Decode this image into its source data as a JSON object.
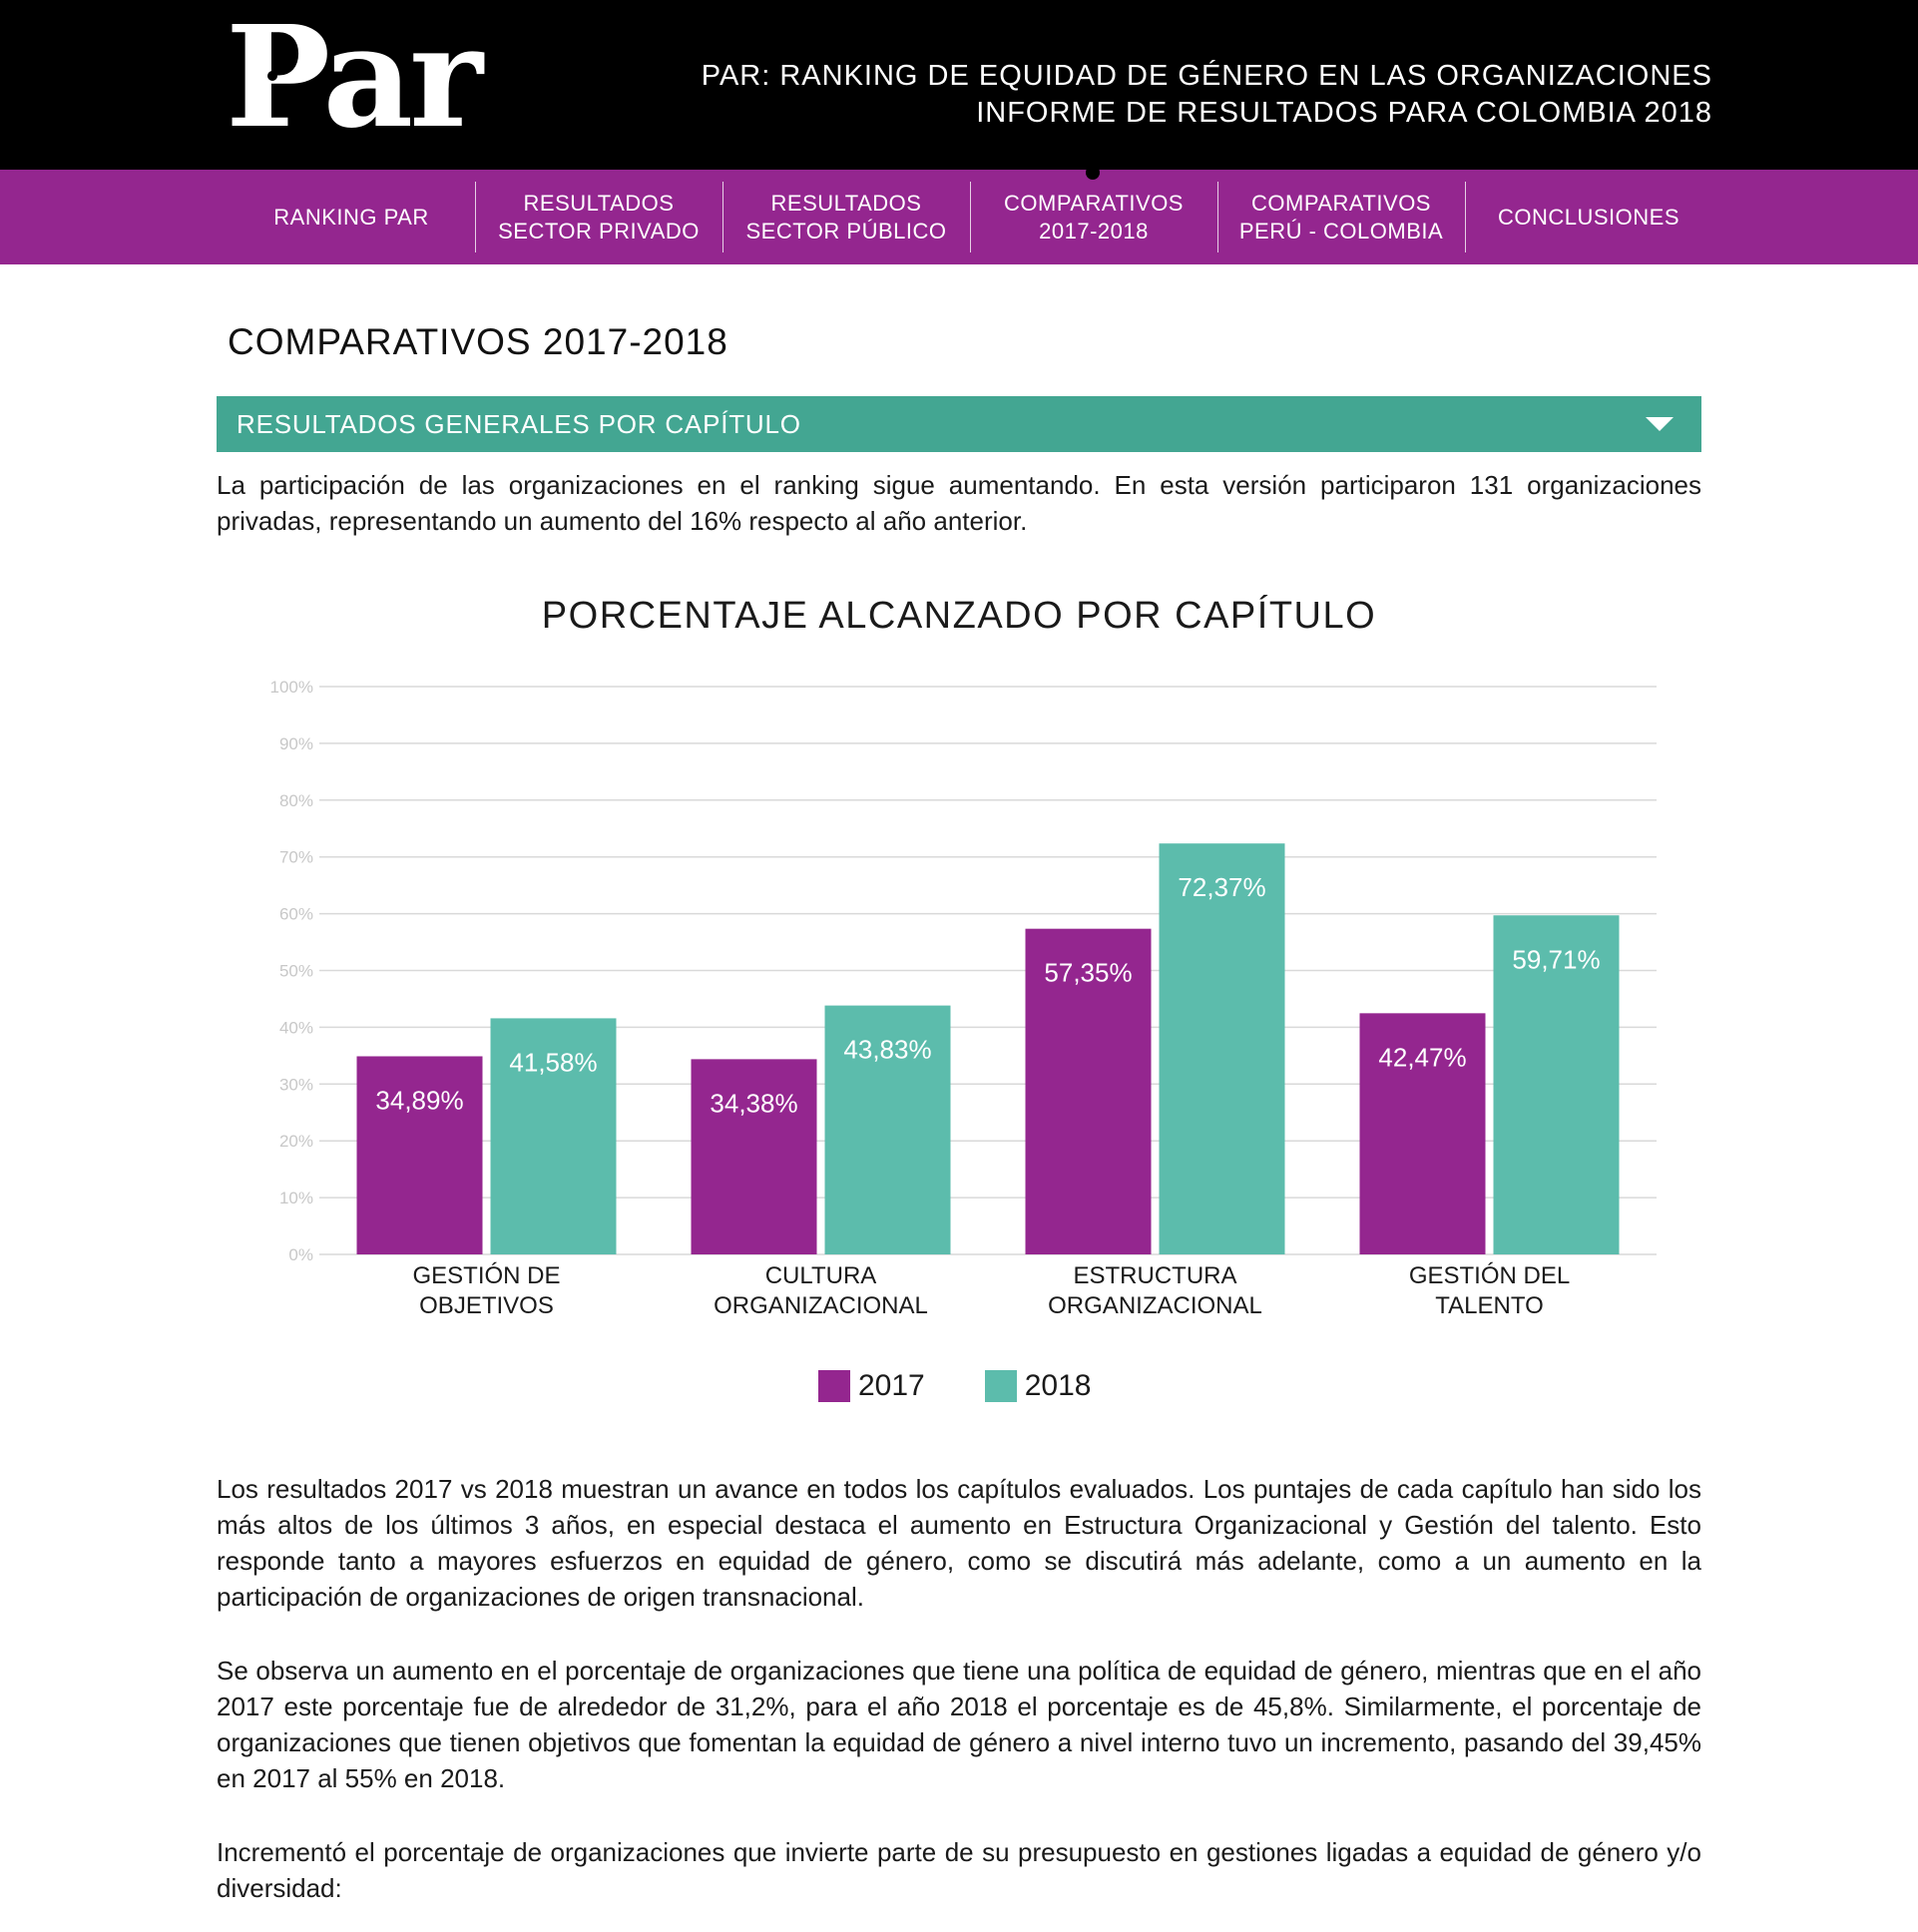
{
  "header": {
    "logo_text": "Par",
    "title_line1": "PAR: RANKING DE EQUIDAD DE GÉNERO EN LAS ORGANIZACIONES",
    "title_line2": "INFORME DE RESULTADOS PARA COLOMBIA 2018"
  },
  "nav": {
    "items": [
      {
        "label": "RANKING PAR"
      },
      {
        "label": "RESULTADOS\nSECTOR PRIVADO"
      },
      {
        "label": "RESULTADOS\nSECTOR PÚBLICO"
      },
      {
        "label": "COMPARATIVOS\n2017-2018"
      },
      {
        "label": "COMPARATIVOS\nPERÚ - COLOMBIA"
      },
      {
        "label": "CONCLUSIONES"
      }
    ]
  },
  "page_title": "COMPARATIVOS 2017-2018",
  "accordion": {
    "label": "RESULTADOS GENERALES POR CAPÍTULO"
  },
  "intro": "La participación de las organizaciones en el ranking sigue aumentando. En esta versión participaron 131 organizaciones privadas, representando un aumento del 16% respecto al año anterior.",
  "chart_data": {
    "type": "bar",
    "title": "PORCENTAJE ALCANZADO POR CAPÍTULO",
    "categories": [
      "GESTIÓN DE\nOBJETIVOS",
      "CULTURA\nORGANIZACIONAL",
      "ESTRUCTURA\nORGANIZACIONAL",
      "GESTIÓN DEL\nTALENTO"
    ],
    "series": [
      {
        "name": "2017",
        "values": [
          34.89,
          34.38,
          57.35,
          42.47
        ],
        "labels": [
          "34,89%",
          "34,38%",
          "57,35%",
          "42,47%"
        ],
        "color": "#94268f"
      },
      {
        "name": "2018",
        "values": [
          41.58,
          43.83,
          72.37,
          59.71
        ],
        "labels": [
          "41,58%",
          "43,83%",
          "72,37%",
          "59,71%"
        ],
        "color": "#5cbcac"
      }
    ],
    "yticks": [
      "0%",
      "10%",
      "20%",
      "30%",
      "40%",
      "50%",
      "60%",
      "70%",
      "80%",
      "90%",
      "100%"
    ],
    "ylim": [
      0,
      100
    ],
    "grid": true,
    "legend": "bottom"
  },
  "body_paragraphs": [
    "Los resultados 2017 vs 2018 muestran un avance en todos los capítulos evaluados. Los puntajes de cada capítulo han sido los más altos de los últimos 3 años, en especial destaca el aumento en Estructura Organizacional y Gestión del talento. Esto responde tanto a mayores esfuerzos en equidad de género, como se discutirá más adelante, como a un aumento en la participación de organizaciones de origen transnacional.",
    "Se observa un aumento en el porcentaje de organizaciones que tiene una política de equidad de género, mientras que en el año 2017 este porcentaje fue de alrededor de 31,2%, para el año 2018 el porcentaje es de 45,8%. Similarmente, el porcentaje de organizaciones que tienen objetivos que fomentan la equidad de género a nivel interno tuvo un incremento, pasando del 39,45% en 2017 al 55% en 2018.",
    "Incrementó el porcentaje de organizaciones que invierte parte de su presupuesto en gestiones ligadas a equidad de género y/o diversidad:"
  ]
}
